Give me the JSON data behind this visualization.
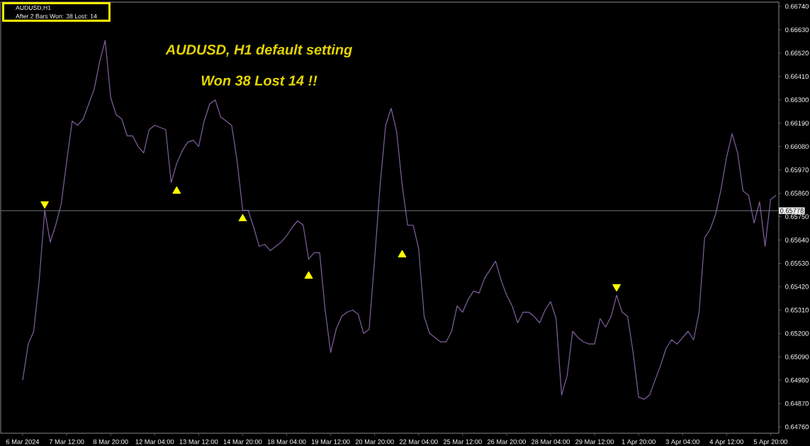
{
  "chart_data": {
    "type": "line",
    "title": "AUDUSD, H1  default setting",
    "subtitle": "Won 38  Lost 14 !!",
    "annotations": [
      "AUDUSD,H1",
      "After  2 Bars  Won: 38  Lost: 14"
    ],
    "categories": [
      "6 Mar 2024",
      null,
      null,
      null,
      null,
      null,
      null,
      null,
      "7 Mar 12:00",
      null,
      null,
      null,
      null,
      null,
      null,
      null,
      "8 Mar 20:00",
      null,
      null,
      null,
      null,
      null,
      null,
      null,
      "12 Mar 04:00",
      null,
      null,
      null,
      null,
      null,
      null,
      null,
      "13 Mar 12:00",
      null,
      null,
      null,
      null,
      null,
      null,
      null,
      "14 Mar 20:00",
      null,
      null,
      null,
      null,
      null,
      null,
      null,
      "18 Mar 04:00",
      null,
      null,
      null,
      null,
      null,
      null,
      null,
      "19 Mar 12:00",
      null,
      null,
      null,
      null,
      null,
      null,
      null,
      "20 Mar 20:00",
      null,
      null,
      null,
      null,
      null,
      null,
      null,
      "22 Mar 04:00",
      null,
      null,
      null,
      null,
      null,
      null,
      null,
      "25 Mar 12:00",
      null,
      null,
      null,
      null,
      null,
      null,
      null,
      "26 Mar 20:00",
      null,
      null,
      null,
      null,
      null,
      null,
      null,
      "28 Mar 04:00",
      null,
      null,
      null,
      null,
      null,
      null,
      null,
      "29 Mar 12:00",
      null,
      null,
      null,
      null,
      null,
      null,
      null,
      "1 Apr 20:00",
      null,
      null,
      null,
      null,
      null,
      null,
      null,
      "3 Apr 04:00",
      null,
      null,
      null,
      null,
      null,
      null,
      null,
      "4 Apr 12:00",
      null,
      null,
      null,
      null,
      null,
      null,
      null,
      "5 Apr 20:00",
      null
    ],
    "series": [
      {
        "color": "#8060a0",
        "values": [
          0.6498,
          0.6515,
          0.6521,
          0.6545,
          0.6578,
          0.6563,
          0.6571,
          0.6581,
          0.6601,
          0.662,
          0.6618,
          0.6621,
          0.6628,
          0.6635,
          0.6648,
          0.6658,
          0.6631,
          0.6623,
          0.6621,
          0.6613,
          0.6613,
          0.6608,
          0.6605,
          0.6616,
          0.6618,
          0.6617,
          0.6616,
          0.6591,
          0.66,
          0.6606,
          0.661,
          0.6611,
          0.6608,
          0.662,
          0.6628,
          0.663,
          0.6622,
          0.662,
          0.6618,
          0.6601,
          0.6578,
          0.6578,
          0.657,
          0.6561,
          0.6562,
          0.6559,
          0.6561,
          0.6563,
          0.6566,
          0.657,
          0.6573,
          0.6571,
          0.6555,
          0.6558,
          0.6558,
          0.6531,
          0.6511,
          0.6522,
          0.6528,
          0.653,
          0.6531,
          0.6529,
          0.652,
          0.6522,
          0.6555,
          0.659,
          0.6618,
          0.6626,
          0.6615,
          0.659,
          0.6571,
          0.6571,
          0.656,
          0.6528,
          0.652,
          0.6518,
          0.6516,
          0.6516,
          0.6521,
          0.6533,
          0.653,
          0.6536,
          0.654,
          0.6539,
          0.6546,
          0.655,
          0.6554,
          0.6545,
          0.6538,
          0.6533,
          0.6525,
          0.653,
          0.653,
          0.6528,
          0.6525,
          0.6531,
          0.6535,
          0.6527,
          0.6491,
          0.65,
          0.6521,
          0.6518,
          0.6516,
          0.6515,
          0.6515,
          0.6527,
          0.6523,
          0.6528,
          0.6538,
          0.653,
          0.6528,
          0.6511,
          0.649,
          0.6489,
          0.6491,
          0.6498,
          0.6505,
          0.6513,
          0.6517,
          0.6515,
          0.6518,
          0.6521,
          0.6517,
          0.653,
          0.6565,
          0.6569,
          0.6576,
          0.6588,
          0.6603,
          0.6614,
          0.6605,
          0.6587,
          0.6585,
          0.6572,
          0.6582,
          0.6561,
          0.6583,
          0.6585
        ]
      },
      {
        "type": "scatter",
        "marker": "triangle",
        "color": "#ffff00",
        "values": [
          null,
          null,
          null,
          null,
          0.6581,
          null,
          null,
          null,
          null,
          null,
          null,
          null,
          null,
          null,
          null,
          null,
          null,
          null,
          null,
          null,
          null,
          null,
          null,
          null,
          null,
          null,
          null,
          null,
          0.6587,
          null,
          null,
          null,
          null,
          null,
          null,
          null,
          null,
          null,
          null,
          null,
          0.6574,
          null,
          null,
          null,
          null,
          null,
          null,
          null,
          null,
          null,
          null,
          null,
          0.6547,
          null,
          null,
          null,
          null,
          null,
          null,
          null,
          null,
          null,
          null,
          null,
          null,
          null,
          null,
          null,
          null,
          0.6557,
          null,
          null,
          null,
          null,
          null,
          null,
          null,
          null,
          null,
          null,
          null,
          null,
          null,
          null,
          null,
          null,
          null,
          null,
          null,
          null,
          null,
          null,
          null,
          null,
          null,
          null,
          null,
          null,
          null,
          null,
          null,
          null,
          null,
          null,
          null,
          null,
          null,
          null,
          0.6542,
          null,
          null,
          null,
          null,
          null,
          null,
          null,
          null,
          null,
          null,
          null,
          null,
          null,
          null,
          null,
          null,
          null,
          null,
          null,
          null,
          null,
          null,
          null,
          null,
          null,
          null,
          null,
          null,
          null
        ]
      }
    ],
    "ylim": [
      0.6473,
      0.6676
    ],
    "yticks": [
      {
        "value": 0.6476,
        "label": "0.64760"
      },
      {
        "value": 0.6487,
        "label": "0.64870"
      },
      {
        "value": 0.6498,
        "label": "0.64980"
      },
      {
        "value": 0.6509,
        "label": "0.65090"
      },
      {
        "value": 0.652,
        "label": "0.65200"
      },
      {
        "value": 0.6531,
        "label": "0.65310"
      },
      {
        "value": 0.6542,
        "label": "0.65420"
      },
      {
        "value": 0.6553,
        "label": "0.65530"
      },
      {
        "value": 0.6564,
        "label": "0.65640"
      },
      {
        "value": 0.6575,
        "label": "0.65750"
      },
      {
        "value": 0.6586,
        "label": "0.65860"
      },
      {
        "value": 0.6597,
        "label": "0.65970"
      },
      {
        "value": 0.6608,
        "label": "0.66080"
      },
      {
        "value": 0.6619,
        "label": "0.66190"
      },
      {
        "value": 0.663,
        "label": "0.66300"
      },
      {
        "value": 0.6641,
        "label": "0.66410"
      },
      {
        "value": 0.6652,
        "label": "0.66520"
      },
      {
        "value": 0.6663,
        "label": "0.66630"
      },
      {
        "value": 0.6674,
        "label": "0.66740"
      }
    ],
    "ref_lines": [
      {
        "axis": "y",
        "value": 0.65778,
        "label": "0.65778",
        "color": "#8c96a0"
      }
    ]
  }
}
